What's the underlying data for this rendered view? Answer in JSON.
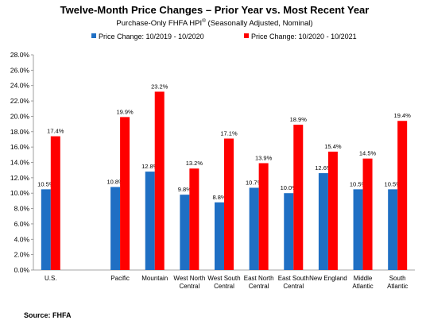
{
  "chart_data": {
    "type": "bar",
    "title": "Twelve-Month Price Changes – Prior Year vs. Most Recent Year",
    "subtitle_main": "Purchase-Only FHFA HPI",
    "subtitle_sup": "®",
    "subtitle_rest": " (Seasonally Adjusted, Nominal)",
    "source": "Source: FHFA",
    "ylim": [
      0,
      28
    ],
    "ytick_step": 2,
    "ytick_suffix": "%",
    "grid": false,
    "legend_position": "top",
    "categories": [
      [
        "U.S."
      ],
      [
        ""
      ],
      [
        "Pacific"
      ],
      [
        "Mountain"
      ],
      [
        "West North",
        "Central"
      ],
      [
        "West South",
        "Central"
      ],
      [
        "East North",
        "Central"
      ],
      [
        "East South",
        "Central"
      ],
      [
        "New England"
      ],
      [
        "Middle",
        "Atlantic"
      ],
      [
        "South",
        "Atlantic"
      ]
    ],
    "series": [
      {
        "name": "Price Change:  10/2019 - 10/2020",
        "color": "#1f6fc4",
        "values": [
          10.5,
          null,
          10.8,
          12.8,
          9.8,
          8.8,
          10.7,
          10.0,
          12.6,
          10.5,
          10.5
        ],
        "labels": [
          "10.5%",
          "",
          "10.8%",
          "12.8%",
          "9.8%",
          "8.8%",
          "10.7%",
          "10.0%",
          "12.6%",
          "10.5%",
          "10.5%"
        ]
      },
      {
        "name": "Price Change:  10/2020 - 10/2021",
        "color": "#ff0000",
        "values": [
          17.4,
          null,
          19.9,
          23.2,
          13.2,
          17.1,
          13.9,
          18.9,
          15.4,
          14.5,
          19.4
        ],
        "labels": [
          "17.4%",
          "",
          "19.9%",
          "23.2%",
          "13.2%",
          "17.1%",
          "13.9%",
          "18.9%",
          "15.4%",
          "14.5%",
          "19.4%"
        ]
      }
    ]
  }
}
